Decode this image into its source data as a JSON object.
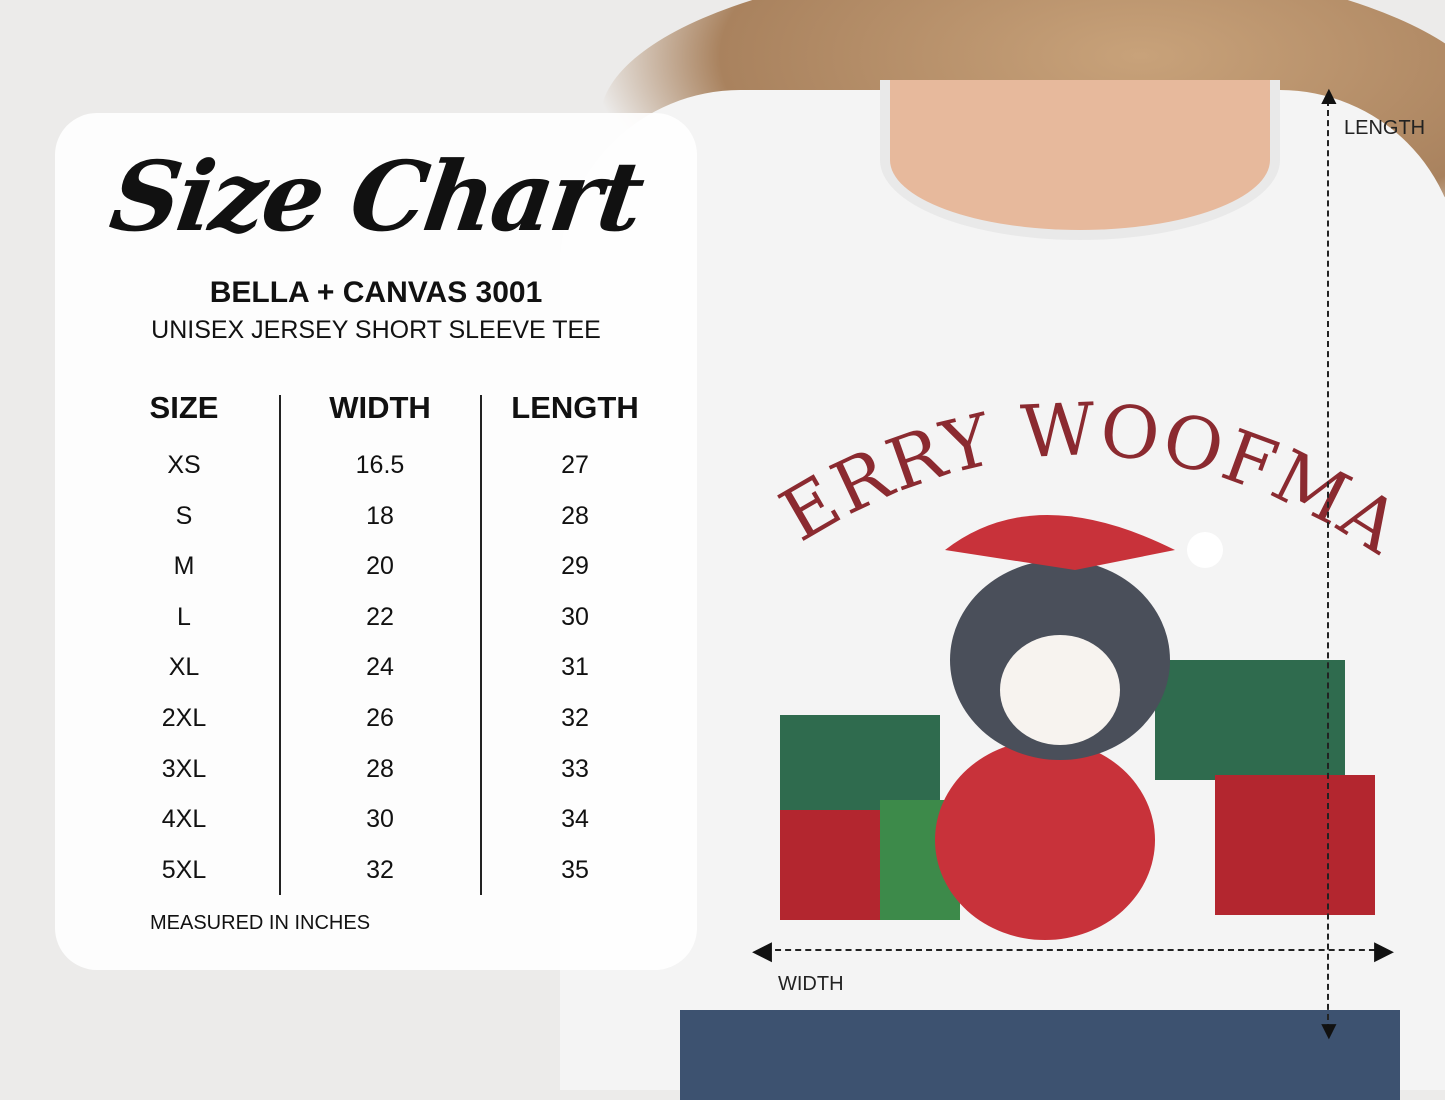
{
  "card": {
    "title": "Size Chart",
    "brand": "BELLA + CANVAS 3001",
    "product": "UNISEX JERSEY SHORT SLEEVE TEE",
    "headers": [
      "SIZE",
      "WIDTH",
      "LENGTH"
    ],
    "sizes": [
      "XS",
      "S",
      "M",
      "L",
      "XL",
      "2XL",
      "3XL",
      "4XL",
      "5XL"
    ],
    "widths": [
      "16.5",
      "18",
      "20",
      "22",
      "24",
      "26",
      "28",
      "30",
      "32"
    ],
    "lengths": [
      "27",
      "28",
      "29",
      "30",
      "31",
      "32",
      "33",
      "34",
      "35"
    ],
    "footnote": "MEASURED IN INCHES"
  },
  "shirt": {
    "design_text": "MERRY WOOFMAS",
    "length_label": "LENGTH",
    "width_label": "WIDTH",
    "design_color": "#8b2a30"
  }
}
